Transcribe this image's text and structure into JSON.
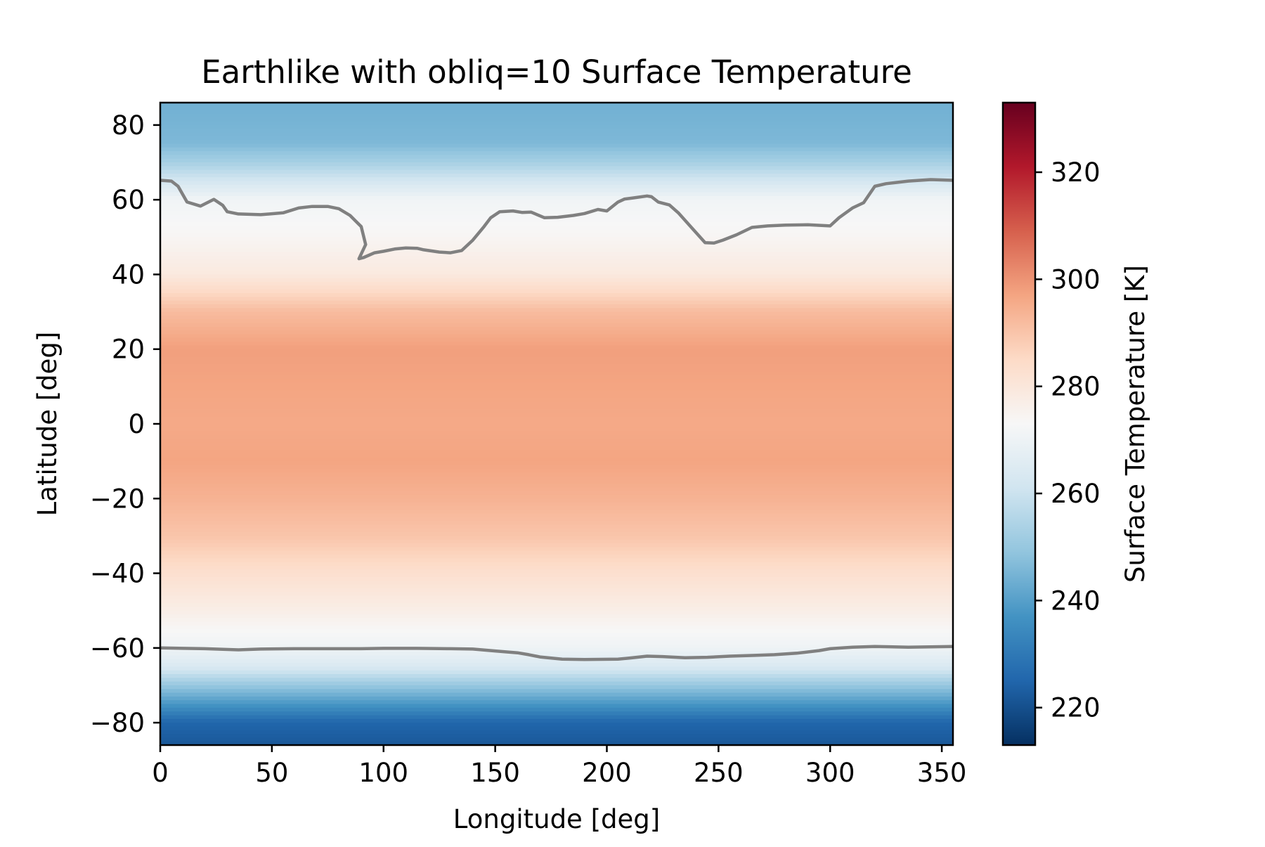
{
  "chart_data": {
    "type": "heatmap",
    "title": "Earthlike with obliq=10 Surface Temperature",
    "xlabel": "Longitude [deg]",
    "ylabel": "Latitude [deg]",
    "xlim": [
      0,
      355
    ],
    "ylim": [
      -86,
      86
    ],
    "xticks": [
      0,
      50,
      100,
      150,
      200,
      250,
      300,
      350
    ],
    "yticks": [
      -80,
      -60,
      -40,
      -20,
      0,
      20,
      40,
      60,
      80
    ],
    "grid": false,
    "colorbar": {
      "label": "Surface Temperature [K]",
      "range": [
        213,
        333
      ],
      "ticks": [
        220,
        240,
        260,
        280,
        300,
        320
      ],
      "colormap": "RdBu_r",
      "colors": [
        "#053061",
        "#2166ac",
        "#4393c3",
        "#92c5de",
        "#d1e5f0",
        "#f7f7f7",
        "#fddbc7",
        "#f4a582",
        "#d6604d",
        "#b2182b",
        "#67001f"
      ]
    },
    "latitude_profile": {
      "lat": [
        86,
        80,
        75,
        70,
        65,
        60,
        50,
        40,
        30,
        20,
        10,
        0,
        -10,
        -20,
        -30,
        -40,
        -50,
        -60,
        -65,
        -70,
        -75,
        -80,
        -86
      ],
      "temperature": [
        244,
        245,
        246,
        253,
        262,
        271,
        274,
        279,
        292,
        298,
        297,
        296,
        297,
        294,
        290,
        283,
        277,
        270,
        264,
        250,
        238,
        225,
        222
      ]
    },
    "contours": [
      {
        "name": "north",
        "lon": [
          0,
          5,
          8,
          12,
          18,
          24,
          28,
          30,
          35,
          45,
          55,
          62,
          68,
          75,
          80,
          85,
          90,
          92,
          89,
          91,
          96,
          100,
          105,
          110,
          115,
          118,
          125,
          130,
          135,
          140,
          145,
          148,
          152,
          158,
          162,
          166,
          172,
          178,
          185,
          190,
          196,
          200,
          205,
          208,
          212,
          218,
          220,
          223,
          228,
          232,
          238,
          244,
          248,
          252,
          258,
          265,
          272,
          280,
          290,
          300,
          304,
          310,
          315,
          320,
          325,
          335,
          345,
          355
        ],
        "lat": [
          65.2,
          65.0,
          63.6,
          59.4,
          58.3,
          60.1,
          58.5,
          56.8,
          56.2,
          56.0,
          56.5,
          57.8,
          58.2,
          58.2,
          57.6,
          55.8,
          52.8,
          48.0,
          44.2,
          44.5,
          45.8,
          46.2,
          46.8,
          47.1,
          47.0,
          46.6,
          46.0,
          45.8,
          46.4,
          49.2,
          52.8,
          55.2,
          56.8,
          57.0,
          56.6,
          56.7,
          55.2,
          55.3,
          55.8,
          56.3,
          57.4,
          57.0,
          59.4,
          60.2,
          60.5,
          61.0,
          60.8,
          59.4,
          58.6,
          56.5,
          52.5,
          48.5,
          48.4,
          49.2,
          50.6,
          52.6,
          53.0,
          53.2,
          53.3,
          53.0,
          55.2,
          57.8,
          59.2,
          63.6,
          64.3,
          65.0,
          65.4,
          65.2
        ]
      },
      {
        "name": "south",
        "lon": [
          0,
          20,
          35,
          45,
          60,
          75,
          90,
          100,
          115,
          130,
          140,
          150,
          160,
          165,
          170,
          180,
          190,
          205,
          210,
          218,
          225,
          235,
          245,
          255,
          265,
          275,
          285,
          295,
          300,
          310,
          320,
          335,
          345,
          355
        ],
        "lat": [
          -60.0,
          -60.2,
          -60.5,
          -60.3,
          -60.2,
          -60.2,
          -60.2,
          -60.1,
          -60.1,
          -60.2,
          -60.3,
          -60.8,
          -61.3,
          -61.8,
          -62.4,
          -63.0,
          -63.1,
          -63.0,
          -62.7,
          -62.2,
          -62.3,
          -62.6,
          -62.5,
          -62.2,
          -62.0,
          -61.8,
          -61.4,
          -60.7,
          -60.2,
          -59.8,
          -59.6,
          -59.8,
          -59.7,
          -59.6
        ]
      }
    ]
  }
}
